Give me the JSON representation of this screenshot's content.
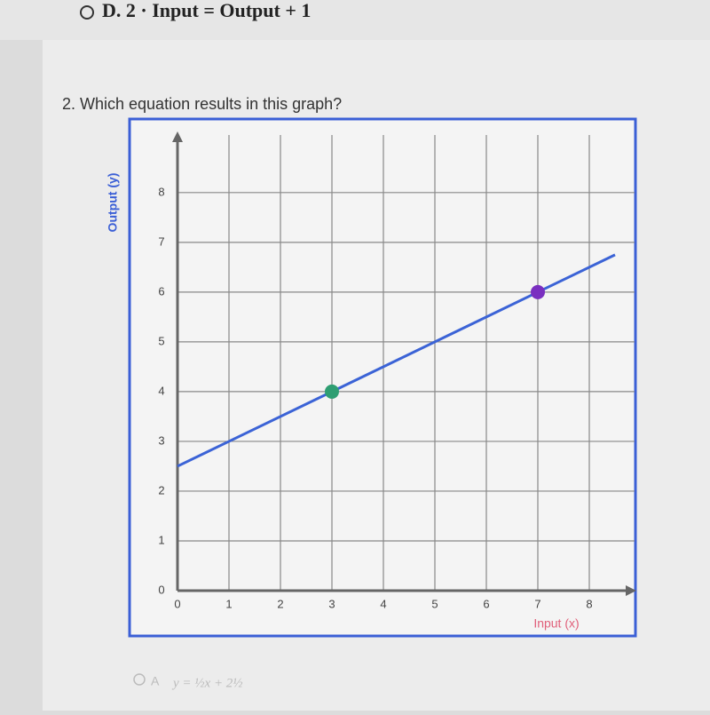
{
  "header": {
    "option_d": "D. 2 · Input = Output + 1"
  },
  "question": "2. Which equation results in this graph?",
  "options": [
    {
      "letter": "A",
      "text": "y = ½x + 2½"
    }
  ],
  "chart_data": {
    "type": "line",
    "xlabel": "Input (x)",
    "ylabel": "Output (y)",
    "x": [
      0,
      8.5
    ],
    "values": [
      2.5,
      6.75
    ],
    "color": "#3b63d6",
    "points": {
      "x": [
        3,
        7
      ],
      "values": [
        4,
        6
      ],
      "colors": [
        "#2e9e72",
        "#7a2fc0"
      ]
    },
    "xlim": [
      0,
      8.5
    ],
    "ylim": [
      0,
      8.8
    ],
    "xticks": [
      0,
      1,
      2,
      3,
      4,
      5,
      6,
      7,
      8
    ],
    "yticks": [
      0,
      1,
      2,
      3,
      4,
      5,
      6,
      7,
      8
    ],
    "grid": true
  }
}
